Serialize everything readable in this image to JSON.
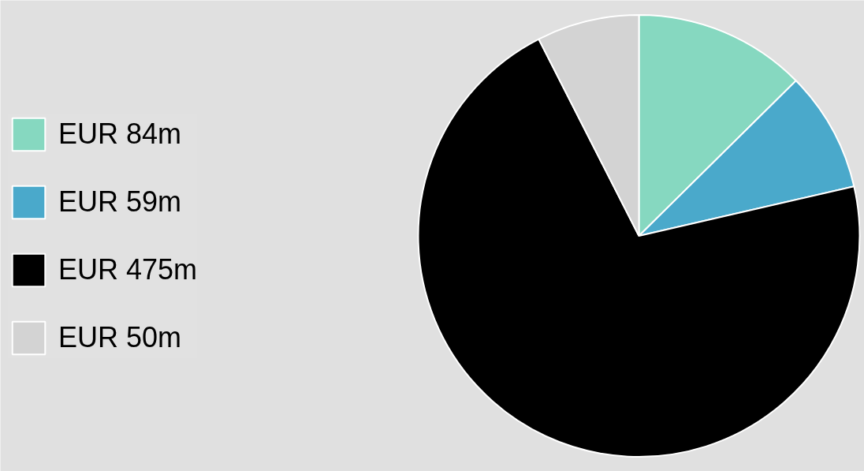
{
  "chart_data": {
    "type": "pie",
    "categories": [
      "EUR 84m",
      "EUR 59m",
      "EUR 475m",
      "EUR 50m"
    ],
    "values": [
      12.6,
      8.8,
      71.1,
      7.5
    ],
    "colors": [
      "#86d8c0",
      "#4aa9cb",
      "#000000",
      "#d3d3d3"
    ],
    "legend": "left"
  }
}
